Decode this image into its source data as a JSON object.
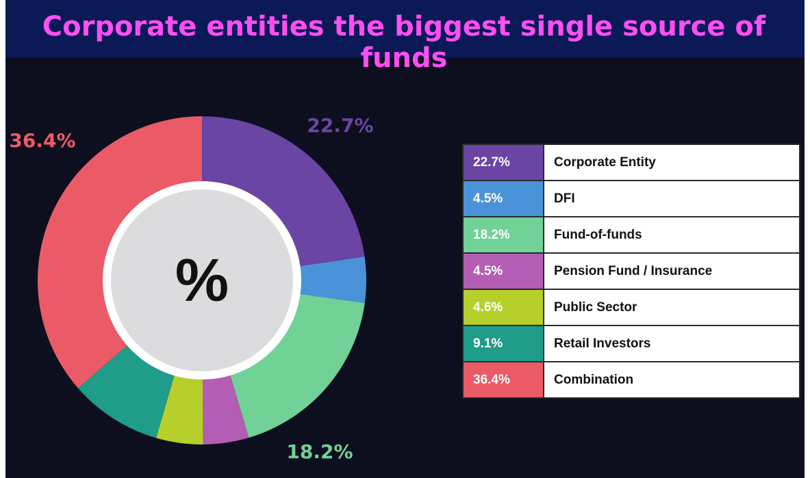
{
  "chart_data": {
    "type": "pie",
    "title": "Corporate entities the biggest single source of funds",
    "center_label": "%",
    "categories": [
      "Corporate Entity",
      "DFI",
      "Fund-of-funds",
      "Pension Fund / Insurance",
      "Public Sector",
      "Retail Investors",
      "Combination"
    ],
    "values": [
      22.7,
      4.5,
      18.2,
      4.5,
      4.6,
      9.1,
      36.4
    ],
    "value_labels": [
      "22.7%",
      "4.5%",
      "18.2%",
      "4.5%",
      "4.6%",
      "9.1%",
      "36.4%"
    ],
    "colors": [
      "#6a45a3",
      "#4b93d8",
      "#72d197",
      "#b35db4",
      "#b7cf2b",
      "#1f9c8a",
      "#ea5b67"
    ]
  }
}
